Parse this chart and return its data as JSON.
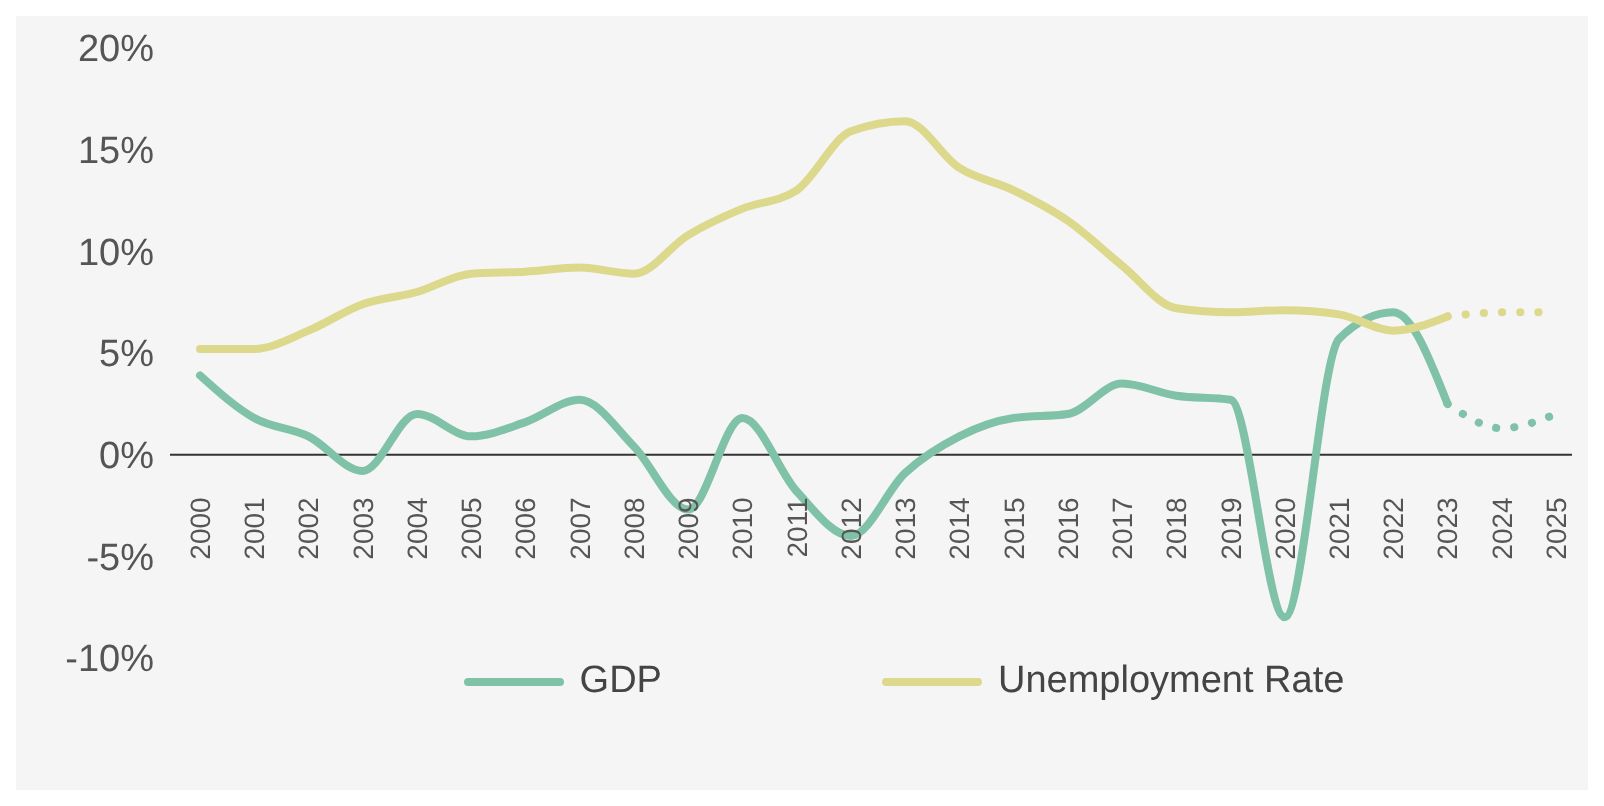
{
  "chart_data": {
    "type": "line",
    "categories": [
      "2000",
      "2001",
      "2002",
      "2003",
      "2004",
      "2005",
      "2006",
      "2007",
      "2008",
      "2009",
      "2010",
      "2011",
      "2012",
      "2013",
      "2014",
      "2015",
      "2016",
      "2017",
      "2018",
      "2019",
      "2020",
      "2021",
      "2022",
      "2023",
      "2024",
      "2025"
    ],
    "series": [
      {
        "name": "GDP",
        "color": "#7fc2a8",
        "line_style": "solid",
        "values": [
          3.9,
          1.8,
          0.9,
          -0.8,
          2.0,
          0.9,
          1.6,
          2.7,
          0.4,
          -2.7,
          1.8,
          -1.8,
          -4.0,
          -0.9,
          0.9,
          1.8,
          2.0,
          3.5,
          2.9,
          2.7,
          -8.0,
          5.7,
          7.0,
          2.5,
          null,
          null
        ]
      },
      {
        "name": "Unemployment Rate",
        "color": "#dcd98c",
        "line_style": "solid",
        "values": [
          5.2,
          5.2,
          6.1,
          7.4,
          8.0,
          8.9,
          9.0,
          9.2,
          8.9,
          10.8,
          12.1,
          13.0,
          15.9,
          16.4,
          14.1,
          13.0,
          11.5,
          9.3,
          7.2,
          7.0,
          7.1,
          6.9,
          6.1,
          6.8,
          null,
          null
        ]
      },
      {
        "color": "#7fc2a8",
        "line_style": "dotted",
        "values": [
          null,
          null,
          null,
          null,
          null,
          null,
          null,
          null,
          null,
          null,
          null,
          null,
          null,
          null,
          null,
          null,
          null,
          null,
          null,
          null,
          null,
          null,
          null,
          2.5,
          1.3,
          2.0
        ]
      },
      {
        "color": "#dcd98c",
        "line_style": "dotted",
        "values": [
          null,
          null,
          null,
          null,
          null,
          null,
          null,
          null,
          null,
          null,
          null,
          null,
          null,
          null,
          null,
          null,
          null,
          null,
          null,
          null,
          null,
          null,
          null,
          6.8,
          7.0,
          7.0
        ]
      }
    ],
    "ylim": [
      -10,
      20
    ],
    "yticks": [
      {
        "value": -10,
        "label": "-10%"
      },
      {
        "value": -5,
        "label": "-5%"
      },
      {
        "value": 0,
        "label": "0%"
      },
      {
        "value": 5,
        "label": "5%"
      },
      {
        "value": 10,
        "label": "10%"
      },
      {
        "value": 15,
        "label": "15%"
      },
      {
        "value": 20,
        "label": "20%"
      }
    ],
    "legend": "bottom",
    "marker": "none"
  }
}
